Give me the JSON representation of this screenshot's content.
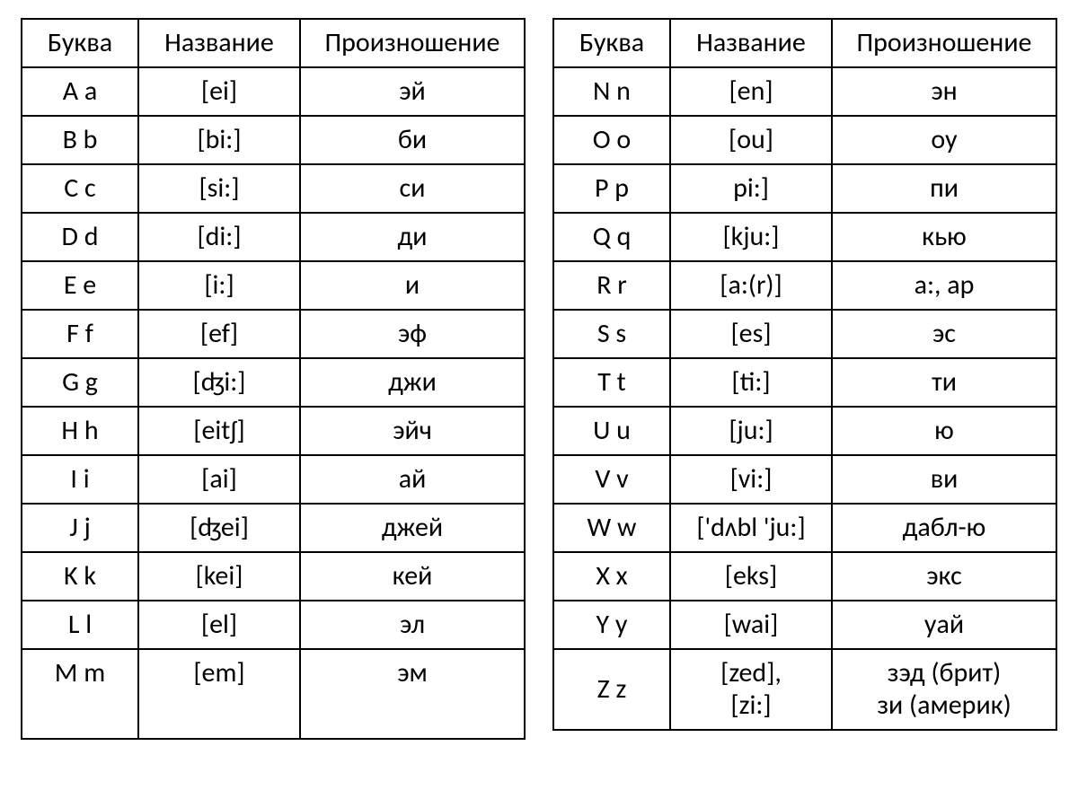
{
  "headers": {
    "letter": "Буква",
    "name": "Название",
    "pronunciation": "Произношение"
  },
  "left": [
    {
      "letter": "A a",
      "name": "[ei]",
      "pron": "эй"
    },
    {
      "letter": "B b",
      "name": "[bi:]",
      "pron": "би"
    },
    {
      "letter": "C c",
      "name": "[si:]",
      "pron": "си"
    },
    {
      "letter": "D d",
      "name": "[di:]",
      "pron": "ди"
    },
    {
      "letter": "E e",
      "name": "[i:]",
      "pron": "и"
    },
    {
      "letter": "F f",
      "name": "[ef]",
      "pron": "эф"
    },
    {
      "letter": "G g",
      "name": "[ʤi:]",
      "pron": "джи"
    },
    {
      "letter": "H h",
      "name": "[eitʃ]",
      "pron": "эйч"
    },
    {
      "letter": "I i",
      "name": "[ai]",
      "pron": "ай"
    },
    {
      "letter": "J j",
      "name": "[ʤei]",
      "pron": "джей"
    },
    {
      "letter": "K k",
      "name": "[kei]",
      "pron": "кей"
    },
    {
      "letter": "L l",
      "name": "[el]",
      "pron": "эл"
    },
    {
      "letter": "M m",
      "name": "[em]",
      "pron": "эм"
    }
  ],
  "right": [
    {
      "letter": "N n",
      "name": "[en]",
      "pron": "эн"
    },
    {
      "letter": "O o",
      "name": "[ou]",
      "pron": "оу"
    },
    {
      "letter": "P p",
      "name": "pi:]",
      "pron": "пи"
    },
    {
      "letter": "Q q",
      "name": "[kju:]",
      "pron": "кью"
    },
    {
      "letter": "R r",
      "name": "[a:(r)]",
      "pron": "а:, ар"
    },
    {
      "letter": "S s",
      "name": "[es]",
      "pron": "эс"
    },
    {
      "letter": "T t",
      "name": "[ti:]",
      "pron": "ти"
    },
    {
      "letter": "U u",
      "name": "[ju:]",
      "pron": "ю"
    },
    {
      "letter": "V v",
      "name": "[vi:]",
      "pron": "ви"
    },
    {
      "letter": "W w",
      "name": "['dʌbl 'ju:]",
      "pron": "дабл-ю"
    },
    {
      "letter": "X x",
      "name": "[eks]",
      "pron": "экс"
    },
    {
      "letter": "Y y",
      "name": "[wai]",
      "pron": "уай"
    },
    {
      "letter": "Z z",
      "name": "[zed],\n[zi:]",
      "pron": "зэд (брит)\nзи (америк)"
    }
  ],
  "style": {
    "border_color": "#000000",
    "text_color": "#000000",
    "background_color": "#ffffff",
    "font_size": 30,
    "col_widths": {
      "letter": 130,
      "name": 180,
      "pron": 250
    },
    "last_left_row_extra_height": true
  }
}
